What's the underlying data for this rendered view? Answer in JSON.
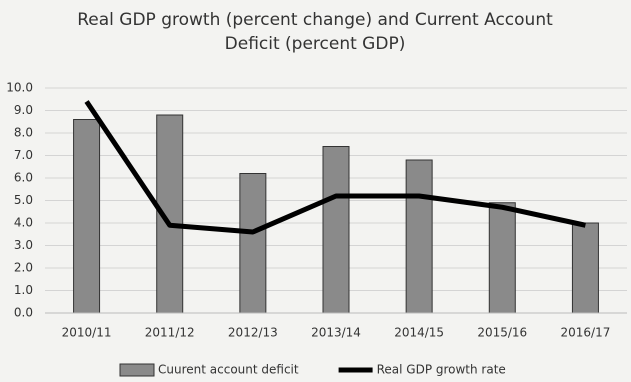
{
  "chart_data": {
    "type": "bar-line",
    "title": "Real GDP growth (percent change) and Current Account Deficit (percent GDP)",
    "categories": [
      "2010/11",
      "2011/12",
      "2012/13",
      "2013/14",
      "2014/15",
      "2015/16",
      "2016/17"
    ],
    "series": [
      {
        "name": "Cuurent account deficit",
        "type": "bar",
        "color": "#8a8a8a",
        "values": [
          8.6,
          8.8,
          6.2,
          7.4,
          6.8,
          4.9,
          4.0
        ]
      },
      {
        "name": "Real GDP growth rate",
        "type": "line",
        "color": "#000000",
        "values": [
          9.4,
          3.9,
          3.6,
          5.2,
          5.2,
          4.7,
          3.9
        ]
      }
    ],
    "ylim": [
      0,
      10
    ],
    "yticks": [
      {
        "value": 0,
        "label": "0.0"
      },
      {
        "value": 1,
        "label": "1.0"
      },
      {
        "value": 2,
        "label": "2.0"
      },
      {
        "value": 3,
        "label": "3.0"
      },
      {
        "value": 4,
        "label": "4.0"
      },
      {
        "value": 5,
        "label": "5.0"
      },
      {
        "value": 6,
        "label": "6.0"
      },
      {
        "value": 7,
        "label": "7.0"
      },
      {
        "value": 8,
        "label": "8.0"
      },
      {
        "value": 9,
        "label": "9.0"
      },
      {
        "value": 10,
        "label": "10.0"
      }
    ],
    "grid": true,
    "legend": "bottom"
  }
}
